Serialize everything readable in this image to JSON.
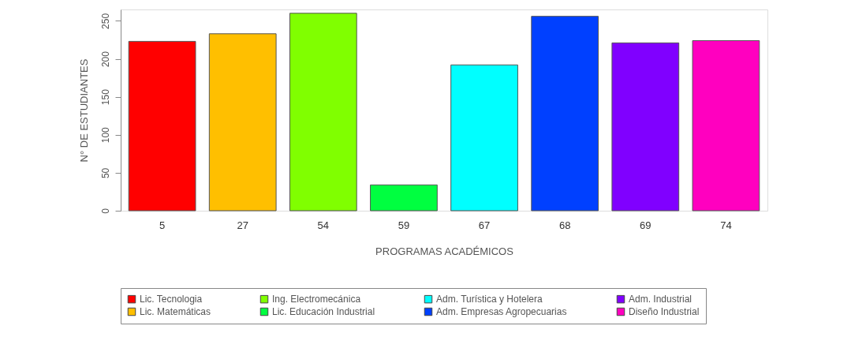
{
  "chart_data": {
    "type": "bar",
    "xlabel": "PROGRAMAS ACADÉMICOS",
    "ylabel": "N° DE ESTUDIANTES",
    "categories": [
      "5",
      "27",
      "54",
      "59",
      "67",
      "68",
      "69",
      "74"
    ],
    "stacked": true,
    "series": [
      {
        "name": "Lic. Tecnologia",
        "color": "#ff0000",
        "values": [
          223,
          null,
          null,
          null,
          null,
          null,
          null,
          null
        ]
      },
      {
        "name": "Lic. Matemáticas",
        "color": "#ffbf00",
        "values": [
          null,
          233,
          null,
          null,
          null,
          null,
          null,
          null
        ]
      },
      {
        "name": "Ing. Electromecánica",
        "color": "#80ff00",
        "values": [
          null,
          null,
          260,
          null,
          null,
          null,
          null,
          null
        ]
      },
      {
        "name": "Lic. Educación Industrial",
        "color": "#00ff40",
        "values": [
          null,
          null,
          null,
          34,
          null,
          null,
          null,
          null
        ]
      },
      {
        "name": "Adm. Turística y Hotelera",
        "color": "#00ffff",
        "values": [
          null,
          null,
          null,
          null,
          192,
          null,
          null,
          null
        ]
      },
      {
        "name": "Adm. Empresas Agropecuarias",
        "color": "#0040ff",
        "values": [
          null,
          null,
          null,
          null,
          null,
          256,
          null,
          null
        ]
      },
      {
        "name": "Adm. Industrial",
        "color": "#8000ff",
        "values": [
          null,
          null,
          null,
          null,
          null,
          null,
          221,
          null
        ]
      },
      {
        "name": "Diseño Industrial",
        "color": "#ff00bf",
        "values": [
          null,
          null,
          null,
          null,
          null,
          null,
          null,
          224
        ]
      }
    ],
    "ylim": [
      0,
      265
    ],
    "yticks": [
      0,
      50,
      100,
      150,
      200,
      250
    ],
    "grid": false,
    "legend": "bottom"
  }
}
